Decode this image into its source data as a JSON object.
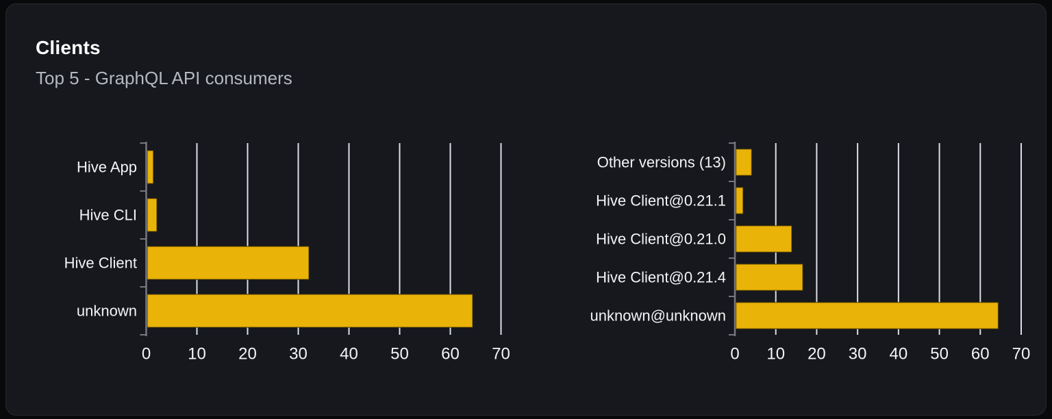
{
  "card": {
    "title": "Clients",
    "subtitle": "Top 5 - GraphQL API consumers"
  },
  "colors": {
    "page_bg": "#08090a",
    "card_bg": "#16181d",
    "card_border": "#26292f",
    "title": "#ffffff",
    "subtitle": "#b4b8bf",
    "text": "#f3f4f6",
    "bar": "#eab308",
    "bar_edge": "rgba(50,40,6,0.6)",
    "gridline": "#dbdfe6",
    "axis": "#75787e"
  },
  "chart_data": [
    {
      "type": "bar",
      "name": "clients-top5-chart",
      "orientation": "horizontal",
      "title": "",
      "xlabel": "",
      "ylabel": "",
      "categories": [
        "Hive App",
        "Hive CLI",
        "Hive Client",
        "unknown"
      ],
      "values": [
        1.4,
        2.1,
        32.1,
        64.4
      ],
      "xlim": [
        0,
        70
      ],
      "xticks": [
        0,
        10,
        20,
        30,
        40,
        50,
        60,
        70
      ],
      "grid": true,
      "legend": false
    },
    {
      "type": "bar",
      "name": "client-versions-chart",
      "orientation": "horizontal",
      "title": "",
      "xlabel": "",
      "ylabel": "",
      "categories": [
        "Other versions (13)",
        "Hive Client@0.21.1",
        "Hive Client@0.21.0",
        "Hive Client@0.21.4",
        "unknown@unknown"
      ],
      "values": [
        4.1,
        2.0,
        13.9,
        16.6,
        64.4
      ],
      "xlim": [
        0,
        70
      ],
      "xticks": [
        0,
        10,
        20,
        30,
        40,
        50,
        60,
        70
      ],
      "grid": true,
      "legend": false
    }
  ]
}
